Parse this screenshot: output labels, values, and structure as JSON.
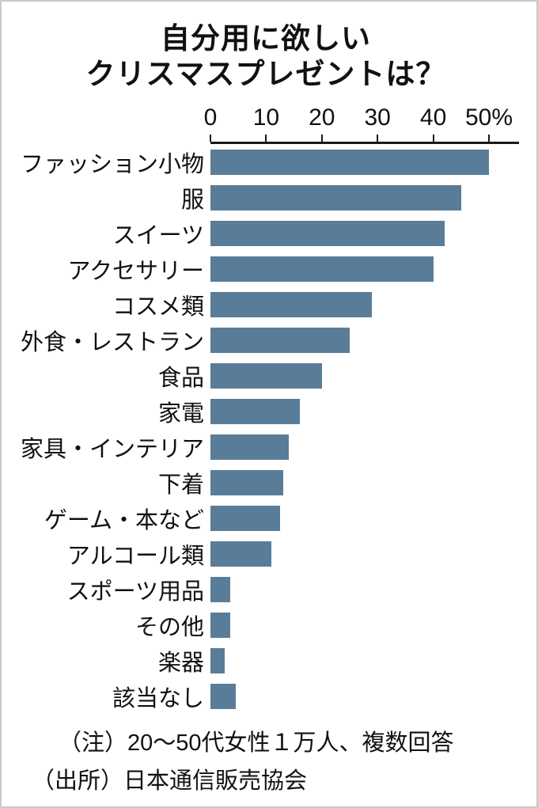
{
  "title": {
    "line1": "自分用に欲しい",
    "line2": "クリスマスプレゼントは？"
  },
  "axis": {
    "ticks": [
      "0",
      "10",
      "20",
      "30",
      "40",
      "50%"
    ],
    "tick_values": [
      0,
      10,
      20,
      30,
      40,
      50
    ]
  },
  "chart_data": {
    "type": "bar",
    "orientation": "horizontal",
    "title": "自分用に欲しいクリスマスプレゼントは？",
    "unit": "%",
    "categories": [
      "ファッション小物",
      "服",
      "スイーツ",
      "アクセサリー",
      "コスメ類",
      "外食・レストラン",
      "食品",
      "家電",
      "家具・インテリア",
      "下着",
      "ゲーム・本など",
      "アルコール類",
      "スポーツ用品",
      "その他",
      "楽器",
      "該当なし"
    ],
    "values": [
      50,
      45,
      42,
      40,
      29,
      25,
      20,
      16,
      14,
      13,
      12.5,
      11,
      3.5,
      3.5,
      2.5,
      4.5
    ],
    "xlim": [
      0,
      55.4
    ],
    "grid": false,
    "legend": false,
    "bar_color": "#597d99",
    "axis_line_color": "#1a1a1a"
  },
  "notes": [
    "（注）20～50代女性１万人、複数回答",
    "（出所）日本通信販売協会"
  ]
}
